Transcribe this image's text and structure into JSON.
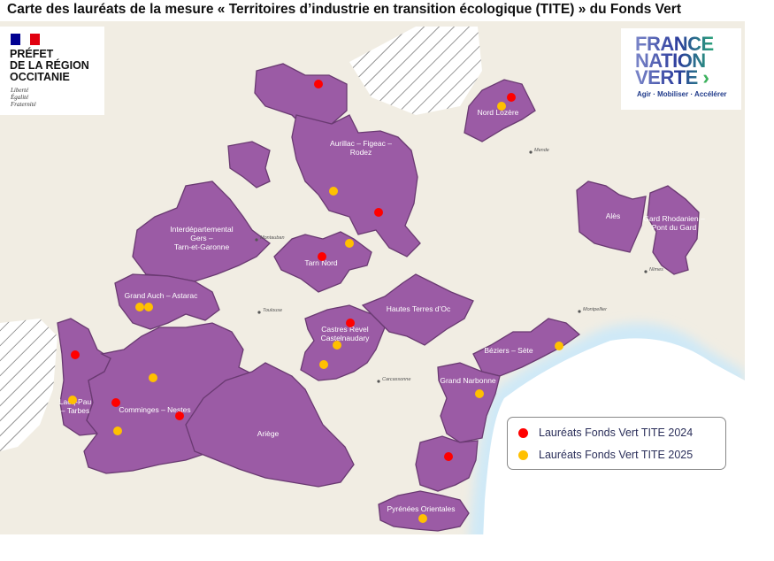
{
  "title": "Carte des lauréats de la mesure « Territoires d’industrie en transition écologique (TITE) » du Fonds Vert",
  "logo_left": {
    "text": [
      "PRÉFET",
      "DE LA RÉGION",
      "OCCITANIE"
    ],
    "motto": [
      "Liberté",
      "Égalité",
      "Fraternité"
    ],
    "flag_colors": [
      "#000091",
      "#ffffff",
      "#e1000f"
    ]
  },
  "logo_right": {
    "text": [
      "FRANCE",
      "NATION",
      "VERTE"
    ],
    "tagline": "Agir · Mobiliser · Accélérer"
  },
  "legend": [
    {
      "label": "Lauréats Fonds Vert TITE 2024",
      "color": "#ff0000"
    },
    {
      "label": "Lauréats Fonds Vert TITE 2025",
      "color": "#ffc000"
    }
  ],
  "colors": {
    "territory": "#9b5ba5",
    "territory_border": "#6a3a72",
    "land": "#f1ede3",
    "sea_edge": "#cfe9f7"
  },
  "territories": [
    {
      "name": ""
    },
    {
      "name": "Aurillac – Figeac – Rodez"
    },
    {
      "name": ""
    },
    {
      "name": "Nord Lozère"
    },
    {
      "name": "Interdépartemental Gers – Tarn-et-Garonne"
    },
    {
      "name": "Grand Auch – Astarac"
    },
    {
      "name": "Tarn Nord"
    },
    {
      "name": "Castres Revel Castelnaudary"
    },
    {
      "name": "Hautes Terres d’Oc"
    },
    {
      "name": "Lacq-Pau – Tarbes"
    },
    {
      "name": "Comminges – Nestes"
    },
    {
      "name": "Ariège"
    },
    {
      "name": "Béziers – Sète"
    },
    {
      "name": "Grand Narbonne"
    },
    {
      "name": ""
    },
    {
      "name": "Pyrénées Orientales"
    },
    {
      "name": "Alès"
    },
    {
      "name": "Gard Rhodanien – Pont du Gard"
    }
  ],
  "cities": [
    "Mende",
    "Montauban",
    "Toulouse",
    "Carcassonne",
    "Montpellier",
    "Nîmes"
  ],
  "markers": [
    {
      "year": 2024
    },
    {
      "year": 2024
    },
    {
      "year": 2025
    },
    {
      "year": 2024
    },
    {
      "year": 2025
    },
    {
      "year": 2025
    },
    {
      "year": 2025
    },
    {
      "year": 2024
    },
    {
      "year": 2025
    },
    {
      "year": 2024
    },
    {
      "year": 2025
    },
    {
      "year": 2025
    },
    {
      "year": 2024
    },
    {
      "year": 2025
    },
    {
      "year": 2024
    },
    {
      "year": 2024
    },
    {
      "year": 2025
    },
    {
      "year": 2025
    },
    {
      "year": 2025
    },
    {
      "year": 2025
    },
    {
      "year": 2024
    },
    {
      "year": 2025
    }
  ]
}
